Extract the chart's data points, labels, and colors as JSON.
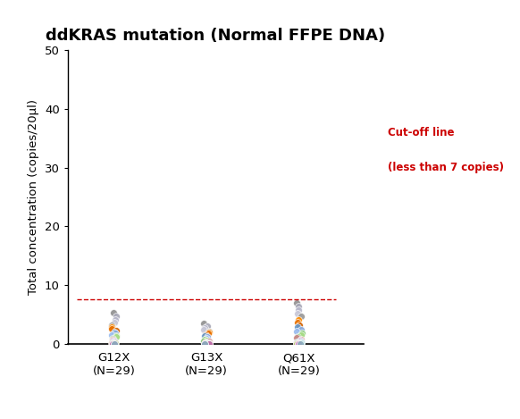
{
  "title": "ddKRAS mutation (Normal FFPE DNA)",
  "ylabel": "Total concentration (copies/20μl)",
  "categories": [
    "G12X\n(N=29)",
    "G13X\n(N=29)",
    "Q61X\n(N=29)"
  ],
  "x_positions": [
    1,
    2,
    3
  ],
  "ylim": [
    0,
    50
  ],
  "yticks": [
    0,
    10,
    20,
    30,
    40,
    50
  ],
  "cutoff": 7.5,
  "cutoff_label_line1": "Cut-off line",
  "cutoff_label_line2": "(less than 7 copies)",
  "cutoff_color": "#cc0000",
  "background_color": "#ffffff",
  "dot_colors": [
    "#909090",
    "#a8a8b8",
    "#b8b8cc",
    "#c8c8d8",
    "#989898",
    "#ff8c00",
    "#e87000",
    "#d06000",
    "#6699cc",
    "#88aadd",
    "#99bbee",
    "#88cc77",
    "#aadd88",
    "#77bb66",
    "#cc8888",
    "#dd9999",
    "#aa88cc",
    "#bb99dd",
    "#66aacc",
    "#77bbdd",
    "#cc9966",
    "#ddaa77",
    "#66bbbb",
    "#77cccc",
    "#aabb66",
    "#bbcc77",
    "#bb66aa",
    "#cc77bb",
    "#88aabb"
  ],
  "G12X_values": [
    5.2,
    4.7,
    4.1,
    3.6,
    3.1,
    2.8,
    2.5,
    2.2,
    1.9,
    1.7,
    1.5,
    1.3,
    1.1,
    0.9,
    0.7,
    0.55,
    0.42,
    0.32,
    0.22,
    0.15,
    0.1,
    0.07,
    0.05,
    0.04,
    0.03,
    0.02,
    0.01,
    0.005,
    0.0
  ],
  "G13X_values": [
    3.4,
    3.0,
    2.7,
    2.4,
    2.1,
    1.9,
    1.7,
    1.5,
    1.3,
    1.1,
    0.9,
    0.7,
    0.55,
    0.42,
    0.32,
    0.22,
    0.15,
    0.1,
    0.07,
    0.05,
    0.04,
    0.03,
    0.02,
    0.01,
    0.005,
    0.0,
    0.0,
    0.0,
    0.0
  ],
  "Q61X_values": [
    7.0,
    6.4,
    5.7,
    5.1,
    4.6,
    4.1,
    3.6,
    3.2,
    2.8,
    2.4,
    2.1,
    1.8,
    1.5,
    1.2,
    0.95,
    0.75,
    0.55,
    0.4,
    0.28,
    0.18,
    0.12,
    0.08,
    0.05,
    0.03,
    0.02,
    0.01,
    0.005,
    0.0,
    0.0
  ]
}
